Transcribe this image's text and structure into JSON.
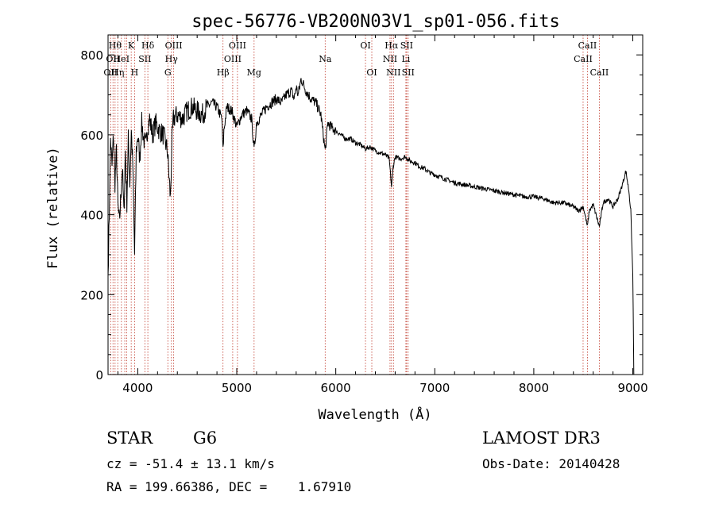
{
  "chart_data": {
    "type": "line",
    "title": "spec-56776-VB200N03V1_sp01-056.fits",
    "xlabel": "Wavelength (Å)",
    "ylabel": "Flux (relative)",
    "xlim": [
      3700,
      9100
    ],
    "ylim": [
      0,
      850
    ],
    "xticks": [
      4000,
      5000,
      6000,
      7000,
      8000,
      9000
    ],
    "xtick_labels": [
      "4000",
      "5000",
      "6000",
      "7000",
      "8000",
      "9000"
    ],
    "yticks": [
      0,
      200,
      400,
      600,
      800
    ],
    "ytick_labels": [
      "0",
      "200",
      "400",
      "600",
      "800"
    ],
    "grid": false,
    "series": [
      {
        "name": "spectrum",
        "x": [
          3700,
          3712,
          3725,
          3740,
          3755,
          3770,
          3785,
          3800,
          3815,
          3830,
          3845,
          3860,
          3875,
          3890,
          3905,
          3920,
          3935,
          3950,
          3968,
          3985,
          4000,
          4020,
          4040,
          4060,
          4080,
          4100,
          4120,
          4150,
          4180,
          4220,
          4260,
          4300,
          4330,
          4345,
          4360,
          4400,
          4450,
          4500,
          4550,
          4600,
          4650,
          4700,
          4750,
          4800,
          4850,
          4861,
          4870,
          4900,
          4950,
          5000,
          5050,
          5100,
          5150,
          5175,
          5200,
          5250,
          5300,
          5350,
          5400,
          5450,
          5500,
          5550,
          5580,
          5600,
          5620,
          5650,
          5700,
          5750,
          5800,
          5850,
          5893,
          5920,
          5950,
          6000,
          6050,
          6100,
          6150,
          6200,
          6250,
          6300,
          6350,
          6400,
          6450,
          6500,
          6540,
          6563,
          6580,
          6600,
          6650,
          6700,
          6750,
          6800,
          6850,
          6900,
          6950,
          7000,
          7100,
          7200,
          7300,
          7400,
          7500,
          7600,
          7700,
          7800,
          7900,
          8000,
          8100,
          8200,
          8300,
          8400,
          8450,
          8500,
          8542,
          8560,
          8600,
          8662,
          8700,
          8750,
          8800,
          8850,
          8900,
          8930,
          8960,
          8980,
          9000,
          9010
        ],
        "values": [
          250,
          400,
          590,
          520,
          600,
          480,
          560,
          420,
          380,
          450,
          520,
          400,
          560,
          430,
          590,
          480,
          610,
          520,
          300,
          560,
          600,
          540,
          630,
          590,
          570,
          620,
          640,
          600,
          630,
          610,
          600,
          560,
          440,
          580,
          640,
          650,
          640,
          660,
          670,
          660,
          650,
          670,
          680,
          670,
          640,
          560,
          610,
          670,
          660,
          620,
          650,
          660,
          640,
          560,
          630,
          650,
          670,
          680,
          690,
          680,
          700,
          710,
          690,
          720,
          700,
          740,
          710,
          690,
          680,
          650,
          560,
          630,
          620,
          610,
          600,
          590,
          590,
          580,
          575,
          565,
          570,
          560,
          555,
          550,
          540,
          470,
          520,
          545,
          540,
          545,
          535,
          530,
          520,
          515,
          505,
          500,
          490,
          480,
          475,
          470,
          465,
          460,
          455,
          450,
          445,
          445,
          440,
          430,
          430,
          420,
          410,
          420,
          370,
          410,
          425,
          370,
          430,
          440,
          420,
          440,
          480,
          510,
          460,
          410,
          250,
          0
        ]
      }
    ],
    "line_markers": [
      {
        "wave": 3726,
        "label": "OII",
        "row": 2
      },
      {
        "wave": 3750,
        "label": "OII",
        "row": 1
      },
      {
        "wave": 3771,
        "label": "Hθ",
        "row": 0
      },
      {
        "wave": 3798,
        "label": "Hη",
        "row": 2
      },
      {
        "wave": 3835,
        "label": "HeI",
        "row": 1
      },
      {
        "wave": 3869,
        "label": "",
        "row": 0
      },
      {
        "wave": 3889,
        "label": "",
        "row": 0
      },
      {
        "wave": 3934,
        "label": "K",
        "row": 0
      },
      {
        "wave": 3968,
        "label": "H",
        "row": 2
      },
      {
        "wave": 4072,
        "label": "SII",
        "row": 1
      },
      {
        "wave": 4102,
        "label": "Hδ",
        "row": 0
      },
      {
        "wave": 4304,
        "label": "G",
        "row": 2
      },
      {
        "wave": 4340,
        "label": "Hγ",
        "row": 1
      },
      {
        "wave": 4363,
        "label": "OIII",
        "row": 0
      },
      {
        "wave": 4861,
        "label": "Hβ",
        "row": 2
      },
      {
        "wave": 4959,
        "label": "OIII",
        "row": 1
      },
      {
        "wave": 5007,
        "label": "OIII",
        "row": 0
      },
      {
        "wave": 5175,
        "label": "Mg",
        "row": 2
      },
      {
        "wave": 5893,
        "label": "Na",
        "row": 1
      },
      {
        "wave": 6300,
        "label": "OI",
        "row": 0
      },
      {
        "wave": 6364,
        "label": "OI",
        "row": 2
      },
      {
        "wave": 6548,
        "label": "NII",
        "row": 1
      },
      {
        "wave": 6563,
        "label": "Hα",
        "row": 0
      },
      {
        "wave": 6583,
        "label": "NII",
        "row": 2
      },
      {
        "wave": 6708,
        "label": "Li",
        "row": 1
      },
      {
        "wave": 6716,
        "label": "SII",
        "row": 0
      },
      {
        "wave": 6731,
        "label": "SII",
        "row": 2
      },
      {
        "wave": 8498,
        "label": "CaII",
        "row": 1
      },
      {
        "wave": 8542,
        "label": "CaII",
        "row": 0
      },
      {
        "wave": 8662,
        "label": "CaII",
        "row": 2
      }
    ]
  },
  "info": {
    "class_label": "STAR",
    "subclass_label": "G6",
    "redshift_text": "cz = -51.4 ± 13.1 km/s",
    "coords_text": "RA = 199.66386, DEC =    1.67910",
    "survey_label": "LAMOST DR3",
    "obs_date_text": "Obs-Date: 20140428"
  }
}
